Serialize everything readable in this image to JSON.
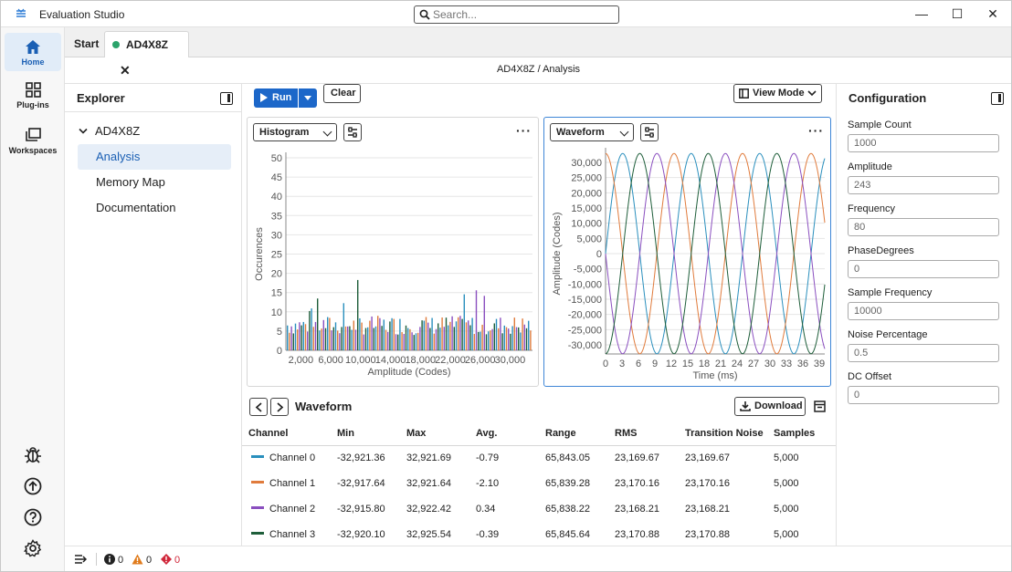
{
  "app": {
    "title": "Evaluation Studio",
    "logo_icon": "app-logo-icon"
  },
  "search": {
    "placeholder": "Search..."
  },
  "window_controls": {
    "minimize": "—",
    "maximize": "☐",
    "close": "✕"
  },
  "rail": {
    "top": [
      {
        "label": "Home",
        "icon": "home-icon",
        "active": true
      },
      {
        "label": "Plug-ins",
        "icon": "grid-icon"
      },
      {
        "label": "Workspaces",
        "icon": "stack-icon"
      }
    ],
    "bottom": [
      {
        "icon": "bug-icon"
      },
      {
        "icon": "upload-circle-icon"
      },
      {
        "icon": "help-circle-icon"
      },
      {
        "icon": "gear-icon"
      }
    ]
  },
  "tabs": [
    {
      "label": "Start",
      "active": false
    },
    {
      "label": "AD4X8Z",
      "active": true,
      "status_color": "#2ba36b"
    }
  ],
  "breadcrumb": "AD4X8Z / Analysis",
  "explorer": {
    "title": "Explorer",
    "root": "AD4X8Z",
    "items": [
      {
        "label": "Analysis",
        "selected": true
      },
      {
        "label": "Memory Map",
        "selected": false
      },
      {
        "label": "Documentation",
        "selected": false
      }
    ]
  },
  "toolbar": {
    "run_label": "Run",
    "clear_label": "Clear",
    "view_mode_label": "View Mode"
  },
  "histogram_panel": {
    "select_value": "Histogram",
    "more": "···"
  },
  "waveform_panel": {
    "select_value": "Waveform",
    "more": "···"
  },
  "chart_data": [
    {
      "type": "bar",
      "xlabel": "Amplitude (Codes)",
      "ylabel": "Occurences",
      "ylim": [
        0,
        50
      ],
      "xlim": [
        0,
        33000
      ],
      "yticks": [
        "0",
        "5",
        "10",
        "15",
        "20",
        "25",
        "30",
        "35",
        "40",
        "45",
        "50"
      ],
      "xticks": [
        "2,000",
        "6,000",
        "10,000",
        "14,000",
        "18,000",
        "22,000",
        "26,000",
        "30,000"
      ],
      "xtick_values": [
        2000,
        6000,
        10000,
        14000,
        18000,
        22000,
        26000,
        30000
      ],
      "series_colors": [
        "#2a8fbd",
        "#e07b3c",
        "#8a4fbf",
        "#1e5e3a"
      ],
      "grid": true
    },
    {
      "type": "line",
      "xlabel": "Time (ms)",
      "ylabel": "Amplitude (Codes)",
      "xlim": [
        0,
        40
      ],
      "ylim": [
        -33000,
        33000
      ],
      "yticks": [
        "30,000",
        "25,000",
        "20,000",
        "15,000",
        "10,000",
        "5,000",
        "0",
        "-5,000",
        "-10,000",
        "-15,000",
        "-20,000",
        "-25,000",
        "-30,000"
      ],
      "ytick_values": [
        30000,
        25000,
        20000,
        15000,
        10000,
        5000,
        0,
        -5000,
        -10000,
        -15000,
        -20000,
        -25000,
        -30000
      ],
      "xticks": [
        "0",
        "3",
        "6",
        "9",
        "12",
        "15",
        "18",
        "21",
        "24",
        "27",
        "30",
        "33",
        "36",
        "39"
      ],
      "xtick_values": [
        0,
        3,
        6,
        9,
        12,
        15,
        18,
        21,
        24,
        27,
        30,
        33,
        36,
        39
      ],
      "series": [
        {
          "color": "#2a8fbd",
          "amplitude": 32922,
          "frequency_hz": 80,
          "phase_deg": 0
        },
        {
          "color": "#e07b3c",
          "amplitude": 32922,
          "frequency_hz": 80,
          "phase_deg": 90
        },
        {
          "color": "#8a4fbf",
          "amplitude": 32922,
          "frequency_hz": 80,
          "phase_deg": 180
        },
        {
          "color": "#1e5e3a",
          "amplitude": 32922,
          "frequency_hz": 80,
          "phase_deg": 270
        }
      ],
      "grid": true
    }
  ],
  "stats": {
    "title": "Waveform",
    "download_label": "Download",
    "columns": [
      "Channel",
      "Min",
      "Max",
      "Avg.",
      "Range",
      "RMS",
      "Transition Noise",
      "Samples"
    ],
    "rows": [
      {
        "channel": "Channel 0",
        "color": "#2a8fbd",
        "min": "-32,921.36",
        "max": "32,921.69",
        "avg": "-0.79",
        "range": "65,843.05",
        "rms": "23,169.67",
        "noise": "23,169.67",
        "samples": "5,000"
      },
      {
        "channel": "Channel 1",
        "color": "#e07b3c",
        "min": "-32,917.64",
        "max": "32,921.64",
        "avg": "-2.10",
        "range": "65,839.28",
        "rms": "23,170.16",
        "noise": "23,170.16",
        "samples": "5,000"
      },
      {
        "channel": "Channel 2",
        "color": "#8a4fbf",
        "min": "-32,915.80",
        "max": "32,922.42",
        "avg": "0.34",
        "range": "65,838.22",
        "rms": "23,168.21",
        "noise": "23,168.21",
        "samples": "5,000"
      },
      {
        "channel": "Channel 3",
        "color": "#1e5e3a",
        "min": "-32,920.10",
        "max": "32,925.54",
        "avg": "-0.39",
        "range": "65,845.64",
        "rms": "23,170.88",
        "noise": "23,170.88",
        "samples": "5,000"
      }
    ]
  },
  "config": {
    "title": "Configuration",
    "fields": [
      {
        "label": "Sample Count",
        "value": "1000"
      },
      {
        "label": "Amplitude",
        "value": "243"
      },
      {
        "label": "Frequency",
        "value": "80"
      },
      {
        "label": "PhaseDegrees",
        "value": "0"
      },
      {
        "label": "Sample Frequency",
        "value": "10000"
      },
      {
        "label": "Noise Percentage",
        "value": "0.5"
      },
      {
        "label": "DC Offset",
        "value": "0"
      }
    ]
  },
  "statusbar": {
    "info_count": "0",
    "warning_count": "0",
    "error_count": "0",
    "colors": {
      "info": "#222222",
      "warning": "#e07b1c",
      "error": "#d0273a"
    }
  }
}
